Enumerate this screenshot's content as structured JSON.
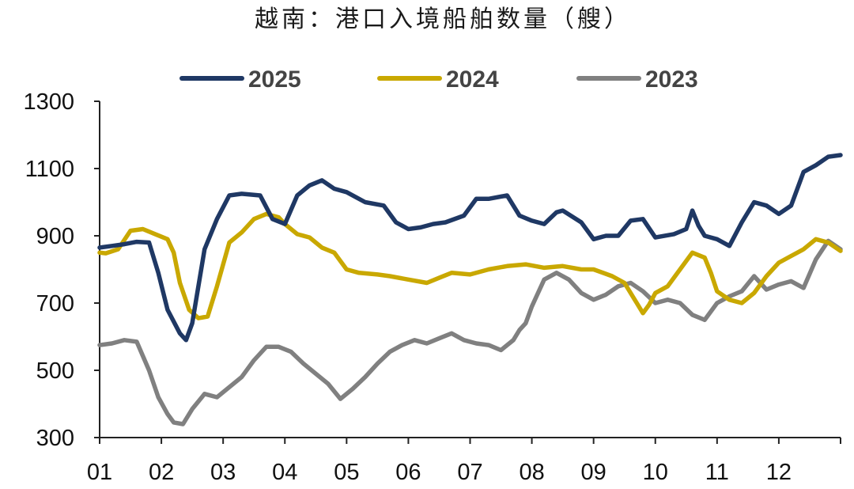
{
  "chart_data": {
    "type": "line",
    "title": "越南：港口入境船舶数量（艘）",
    "xlabel": "",
    "ylabel": "",
    "ylim": [
      300,
      1300
    ],
    "yticks": [
      300,
      500,
      700,
      900,
      1100,
      1300
    ],
    "xlim": [
      1,
      13
    ],
    "categories": [
      "01",
      "02",
      "03",
      "04",
      "05",
      "06",
      "07",
      "08",
      "09",
      "10",
      "11",
      "12"
    ],
    "legend_position": "top-center",
    "grid": false,
    "series": [
      {
        "name": "2025",
        "color": "#1f3864",
        "x": [
          1.0,
          1.2,
          1.4,
          1.6,
          1.8,
          1.95,
          2.1,
          2.3,
          2.4,
          2.5,
          2.7,
          2.9,
          3.1,
          3.3,
          3.6,
          3.8,
          4.0,
          4.2,
          4.4,
          4.6,
          4.8,
          5.0,
          5.3,
          5.6,
          5.8,
          6.0,
          6.2,
          6.4,
          6.6,
          6.9,
          7.1,
          7.3,
          7.6,
          7.8,
          8.0,
          8.2,
          8.4,
          8.5,
          8.8,
          9.0,
          9.2,
          9.4,
          9.6,
          9.8,
          10.0,
          10.3,
          10.5,
          10.6,
          10.7,
          10.8,
          11.0,
          11.2,
          11.4,
          11.6,
          11.8,
          12.0,
          12.2,
          12.4,
          12.6,
          12.8,
          13.0
        ],
        "values": [
          865,
          870,
          875,
          882,
          880,
          790,
          680,
          610,
          590,
          640,
          860,
          950,
          1020,
          1025,
          1020,
          950,
          935,
          1020,
          1050,
          1065,
          1040,
          1030,
          1000,
          990,
          940,
          920,
          925,
          935,
          940,
          960,
          1010,
          1010,
          1020,
          960,
          945,
          935,
          970,
          975,
          940,
          890,
          900,
          900,
          945,
          950,
          895,
          905,
          920,
          975,
          930,
          900,
          890,
          870,
          940,
          1000,
          990,
          965,
          990,
          1090,
          1110,
          1135,
          1140
        ]
      },
      {
        "name": "2024",
        "color": "#c9a800",
        "x": [
          1.0,
          1.1,
          1.3,
          1.5,
          1.7,
          1.9,
          2.1,
          2.2,
          2.3,
          2.45,
          2.6,
          2.75,
          2.9,
          3.1,
          3.3,
          3.5,
          3.7,
          3.9,
          4.0,
          4.2,
          4.4,
          4.6,
          4.8,
          5.0,
          5.2,
          5.5,
          5.7,
          6.0,
          6.3,
          6.5,
          6.7,
          7.0,
          7.3,
          7.6,
          7.9,
          8.2,
          8.5,
          8.8,
          9.0,
          9.3,
          9.5,
          9.7,
          9.8,
          9.9,
          10.0,
          10.2,
          10.4,
          10.6,
          10.8,
          10.9,
          11.0,
          11.2,
          11.4,
          11.6,
          11.8,
          12.0,
          12.2,
          12.4,
          12.6,
          12.8,
          13.0
        ],
        "values": [
          850,
          848,
          860,
          915,
          920,
          905,
          890,
          850,
          760,
          680,
          655,
          660,
          750,
          880,
          910,
          950,
          965,
          955,
          935,
          905,
          895,
          865,
          850,
          800,
          790,
          785,
          780,
          770,
          760,
          775,
          790,
          785,
          800,
          810,
          815,
          805,
          810,
          800,
          800,
          780,
          760,
          700,
          670,
          695,
          730,
          750,
          800,
          850,
          835,
          790,
          735,
          710,
          700,
          730,
          780,
          820,
          840,
          860,
          890,
          880,
          855
        ]
      },
      {
        "name": "2023",
        "color": "#808080",
        "x": [
          1.0,
          1.2,
          1.4,
          1.6,
          1.8,
          1.95,
          2.1,
          2.2,
          2.35,
          2.5,
          2.7,
          2.9,
          3.1,
          3.3,
          3.5,
          3.7,
          3.9,
          4.1,
          4.3,
          4.5,
          4.7,
          4.9,
          5.1,
          5.3,
          5.5,
          5.7,
          5.9,
          6.1,
          6.3,
          6.5,
          6.7,
          6.9,
          7.1,
          7.3,
          7.5,
          7.7,
          7.8,
          7.9,
          8.0,
          8.2,
          8.4,
          8.6,
          8.8,
          9.0,
          9.2,
          9.4,
          9.6,
          9.8,
          10.0,
          10.2,
          10.4,
          10.6,
          10.8,
          11.0,
          11.2,
          11.4,
          11.6,
          11.8,
          12.0,
          12.2,
          12.4,
          12.6,
          12.8,
          13.0
        ],
        "values": [
          575,
          580,
          590,
          585,
          500,
          420,
          370,
          345,
          340,
          385,
          430,
          420,
          450,
          480,
          530,
          570,
          570,
          555,
          520,
          490,
          460,
          415,
          445,
          480,
          520,
          555,
          575,
          590,
          580,
          595,
          610,
          590,
          580,
          575,
          560,
          590,
          620,
          640,
          690,
          770,
          790,
          770,
          730,
          710,
          725,
          750,
          760,
          735,
          700,
          710,
          700,
          665,
          650,
          700,
          720,
          735,
          780,
          740,
          755,
          765,
          745,
          830,
          885,
          860
        ]
      }
    ]
  }
}
